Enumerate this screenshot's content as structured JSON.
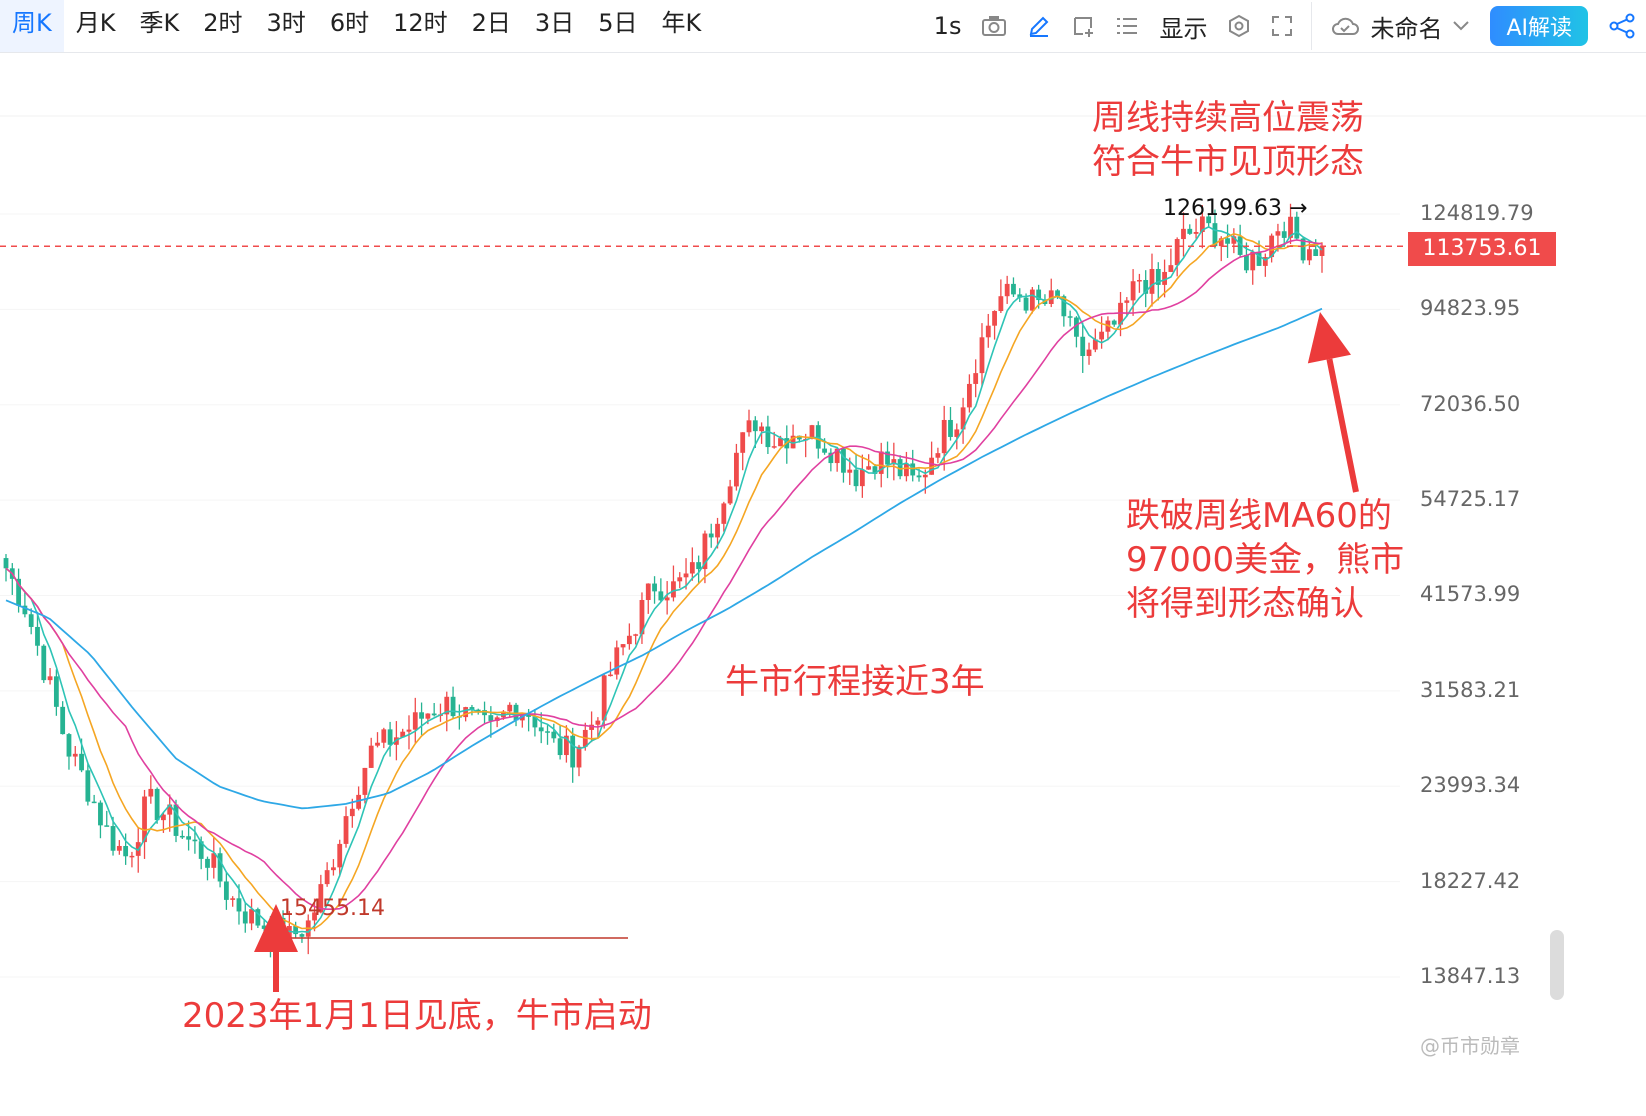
{
  "toolbar": {
    "timeframes": [
      "周K",
      "月K",
      "季K",
      "2时",
      "3时",
      "6时",
      "12时",
      "2日",
      "3日",
      "5日",
      "年K"
    ],
    "active": "周K",
    "interval": "1s",
    "display_label": "显示",
    "layout_name": "未命名",
    "ai_label": "AI解读"
  },
  "annotations": {
    "top_right": "周线持续高位震荡\n符合牛市见顶形态",
    "right": "跌破周线MA60的\n97000美金，熊市\n将得到形态确认",
    "middle": "牛市行程接近3年",
    "bottom": "2023年1月1日见底，牛市启动",
    "high_label": "126199.63",
    "low_label": "15455.14"
  },
  "current_price": "113753.61",
  "watermark": "@币市勋章",
  "colors": {
    "up": "#ef4b4b",
    "down": "#26b392",
    "ma_fast": "#2ec4b6",
    "ma_mid": "#f5a623",
    "ma_slow": "#e040a0",
    "ma60": "#2ea8e6",
    "accent": "#1677ff",
    "annotation": "#ec3b3b"
  },
  "chart_data": {
    "type": "candlestick",
    "title": "",
    "y_scale": "log",
    "y_ticks": [
      "124819.79",
      "94823.95",
      "72036.50",
      "54725.17",
      "41573.99",
      "31583.21",
      "23993.34",
      "18227.42",
      "13847.13"
    ],
    "last_price": 113753.61,
    "high_marker": 126199.63,
    "low_marker": 15455.14,
    "close_path": [
      45000,
      40000,
      33000,
      27000,
      24000,
      21000,
      19500,
      23000,
      22000,
      20500,
      19500,
      17500,
      16500,
      16000,
      15500,
      16200,
      19000,
      23000,
      26500,
      27500,
      28500,
      30000,
      30500,
      29000,
      28000,
      30500,
      29500,
      27000,
      26500,
      29000,
      34000,
      38000,
      43000,
      42500,
      44500,
      52000,
      62000,
      69000,
      65000,
      67000,
      66000,
      63000,
      59000,
      62000,
      60000,
      57000,
      65000,
      70000,
      84000,
      98000,
      99000,
      96000,
      97000,
      83000,
      86000,
      92000,
      104000,
      101000,
      116000,
      120000,
      118000,
      109000,
      111000,
      123000,
      114000,
      113753
    ],
    "series": [
      {
        "name": "MA60",
        "values": [
          41000,
          39000,
          35000,
          30000,
          26000,
          24000,
          23000,
          22500,
          22800,
          23500,
          25000,
          27000,
          29000,
          31000,
          33000,
          35000,
          37500,
          40000,
          43000,
          46500,
          50000,
          54000,
          58000,
          62000,
          66000,
          70000,
          74000,
          78000,
          82000,
          86000,
          90000,
          95000
        ]
      }
    ]
  }
}
